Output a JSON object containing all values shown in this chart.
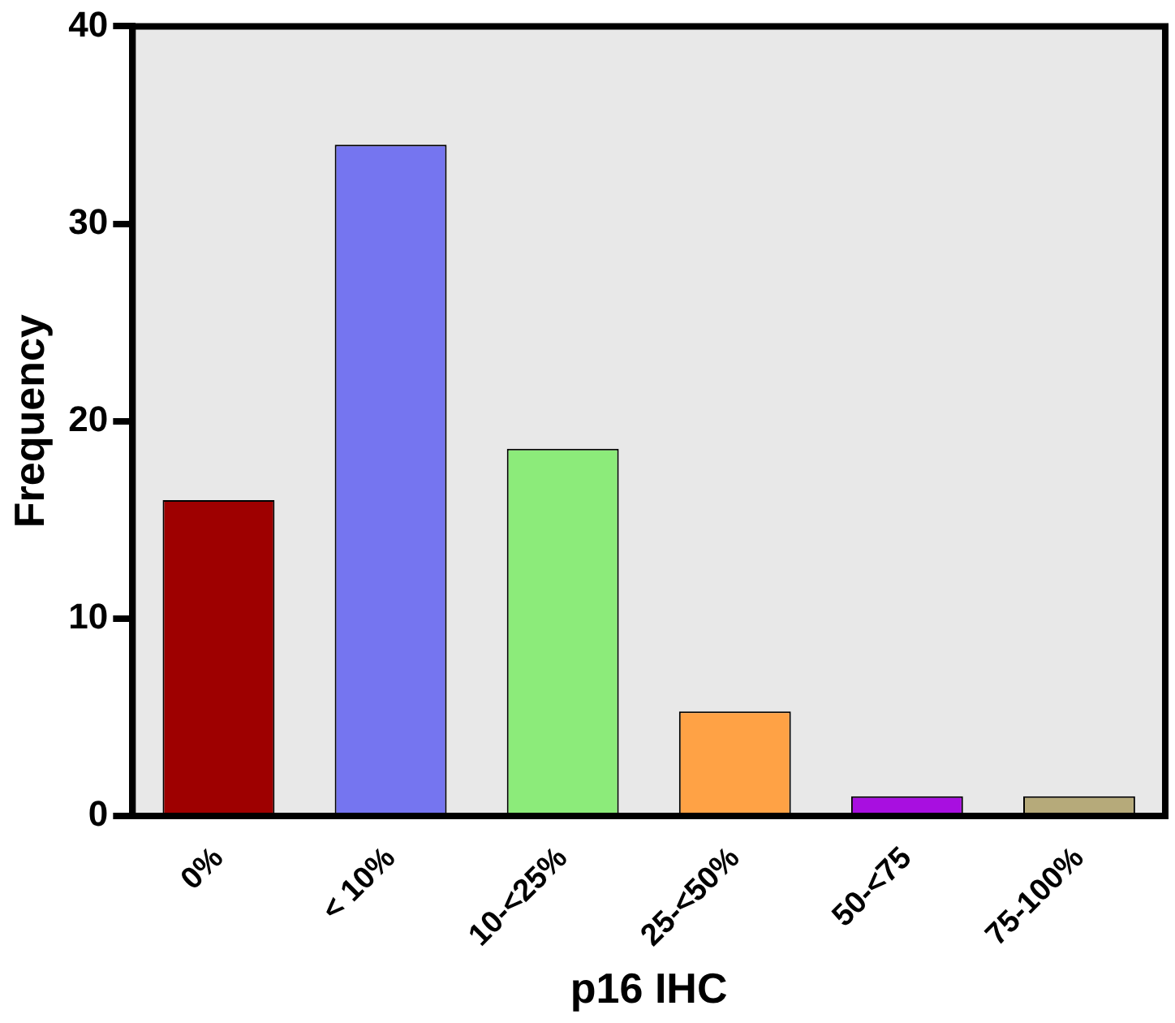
{
  "chart_data": {
    "type": "bar",
    "xlabel": "p16 IHC",
    "ylabel": "Frequency",
    "categories": [
      "0%",
      "< 10%",
      "10-<25%",
      "25-<50%",
      "50-<75",
      "75-100%"
    ],
    "values": [
      16,
      34,
      18.6,
      5.3,
      1,
      1
    ],
    "colors": [
      "#9e0000",
      "#7575f0",
      "#8ceb7a",
      "#ffa245",
      "#a80fe0",
      "#b6aa7a"
    ],
    "ylim": [
      0,
      40
    ],
    "yticks": [
      0,
      10,
      20,
      30,
      40
    ],
    "grid": false,
    "legend": false
  }
}
